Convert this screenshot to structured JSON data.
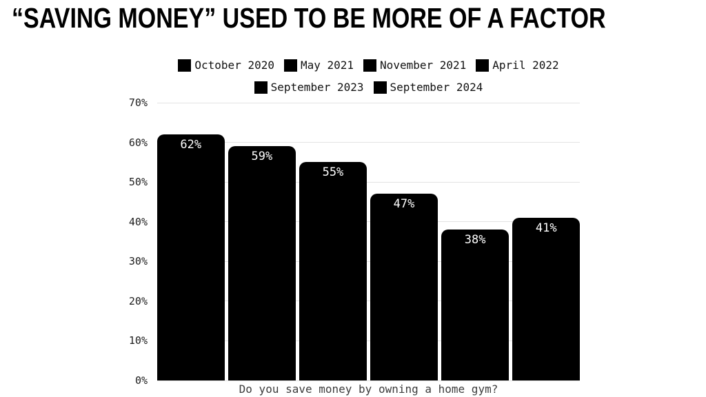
{
  "page": {
    "title": "“SAVING MONEY” USED TO BE MORE OF A FACTOR"
  },
  "chart_data": {
    "type": "bar",
    "title": "“SAVING MONEY” USED TO BE MORE OF A FACTOR",
    "xlabel": "Do you save money by owning a home gym?",
    "ylabel": "",
    "ylim": [
      0,
      70
    ],
    "grid": true,
    "legend_position": "top",
    "colors": {
      "bar": "#000000",
      "bar_label": "#ffffff",
      "gridline": "#e3e3e3",
      "axis_text": "#1c1c1c",
      "title_text": "#000000"
    },
    "yticks": [
      {
        "value": 0,
        "label": "0%"
      },
      {
        "value": 10,
        "label": "10%"
      },
      {
        "value": 20,
        "label": "20%"
      },
      {
        "value": 30,
        "label": "30%"
      },
      {
        "value": 40,
        "label": "40%"
      },
      {
        "value": 50,
        "label": "50%"
      },
      {
        "value": 60,
        "label": "60%"
      },
      {
        "value": 70,
        "label": "70%"
      }
    ],
    "legend": [
      "October 2020",
      "May 2021",
      "November 2021",
      "April 2022",
      "September 2023",
      "September 2024"
    ],
    "series": [
      {
        "name": "October 2020",
        "value": 62,
        "label": "62%"
      },
      {
        "name": "May 2021",
        "value": 59,
        "label": "59%"
      },
      {
        "name": "November 2021",
        "value": 55,
        "label": "55%"
      },
      {
        "name": "April 2022",
        "value": 47,
        "label": "47%"
      },
      {
        "name": "September 2023",
        "value": 38,
        "label": "38%"
      },
      {
        "name": "September 2024",
        "value": 41,
        "label": "41%"
      }
    ]
  }
}
